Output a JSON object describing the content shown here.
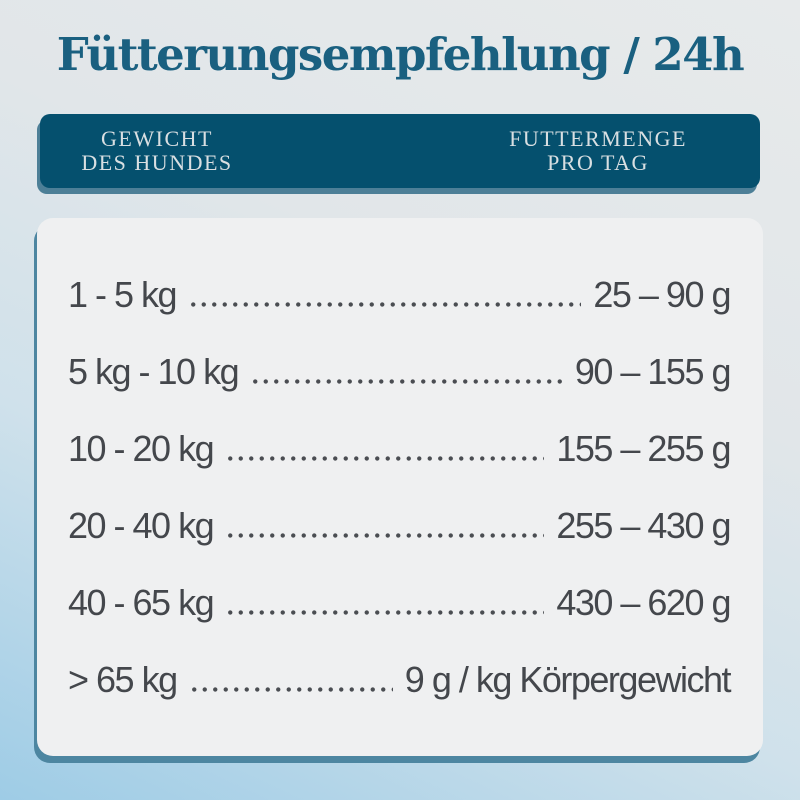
{
  "title": "Fütterungsempfehlung / 24h",
  "table": {
    "header": {
      "weight_line1": "GEWICHT",
      "weight_line2": "DES HUNDES",
      "amount_line1": "FUTTERMENGE",
      "amount_line2": "PRO TAG"
    },
    "rows": [
      {
        "weight": "1 - 5 kg",
        "amount": "25 – 90 g"
      },
      {
        "weight": "5 kg - 10 kg",
        "amount": "90 – 155 g"
      },
      {
        "weight": "10 - 20 kg",
        "amount": "155 – 255 g"
      },
      {
        "weight": "20 - 40 kg",
        "amount": "255 – 430 g"
      },
      {
        "weight": "40 - 65 kg",
        "amount": "430 – 620 g"
      },
      {
        "weight": "> 65 kg",
        "amount": "9 g / kg Körpergewicht"
      }
    ]
  },
  "chart_data": {
    "type": "table",
    "title": "Fütterungsempfehlung / 24h",
    "columns": [
      "Gewicht des Hundes",
      "Futtermenge pro Tag"
    ],
    "rows": [
      [
        "1 - 5 kg",
        "25 – 90 g"
      ],
      [
        "5 kg - 10 kg",
        "90 – 155 g"
      ],
      [
        "10 - 20 kg",
        "155 – 255 g"
      ],
      [
        "20 - 40 kg",
        "255 – 430 g"
      ],
      [
        "40 - 65 kg",
        "430 – 620 g"
      ],
      [
        "> 65 kg",
        "9 g / kg Körpergewicht"
      ]
    ]
  },
  "colors": {
    "title_text": "#1a6080",
    "header_bar": "#05506e",
    "header_bar_shadow": "#4d7f97",
    "header_text": "#d9dfe2",
    "card_background": "#eff0f1",
    "card_shadow": "#4d86a1",
    "row_text": "#44474c",
    "background_top": "#e7eaeb",
    "background_bottom": "#9ecce6"
  }
}
